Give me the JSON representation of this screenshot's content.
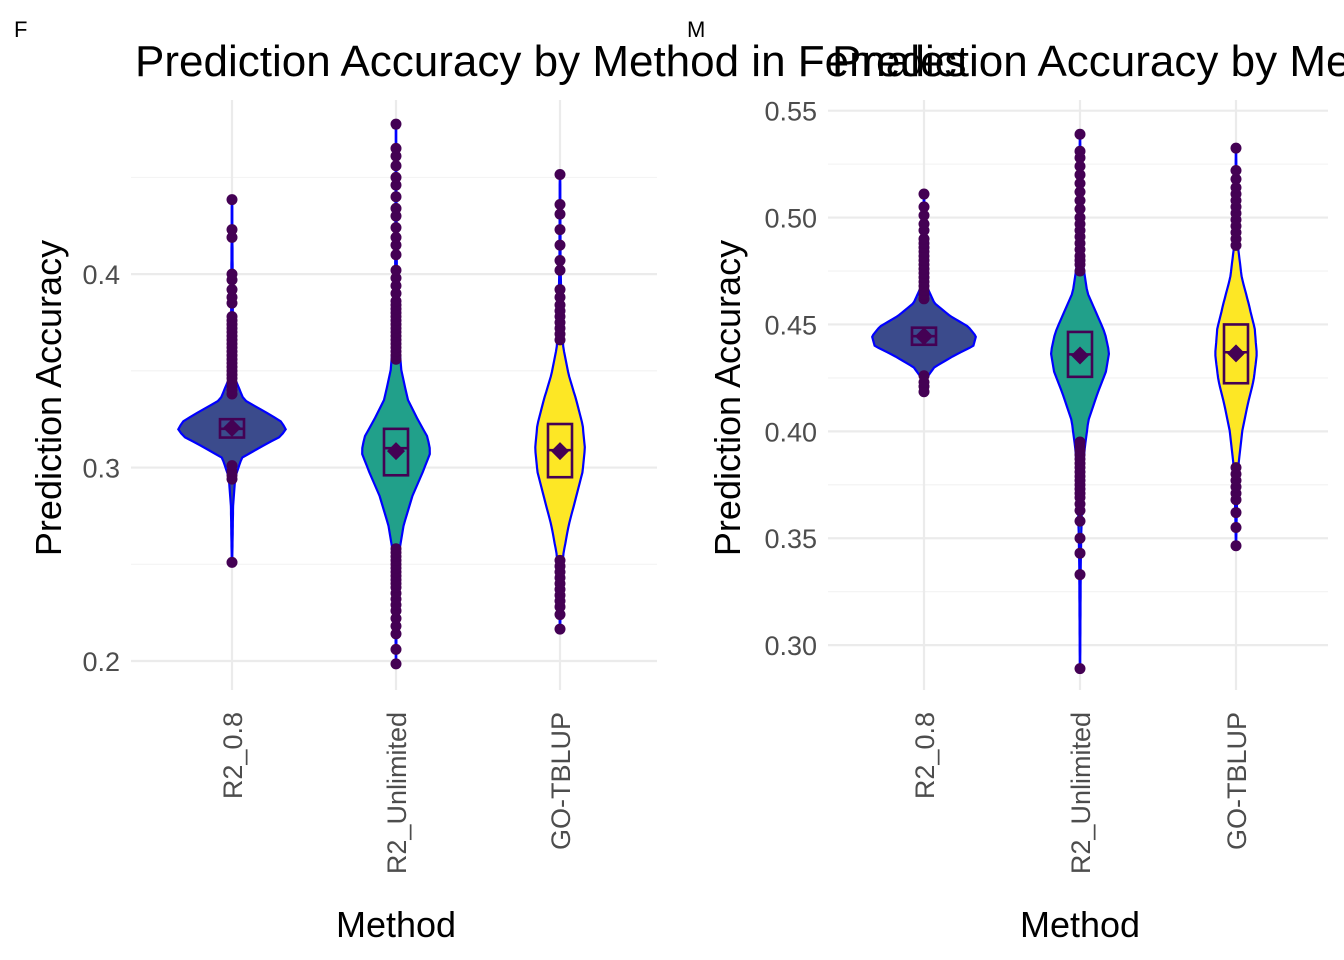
{
  "figure": {
    "background": "#ffffff",
    "violin_outline_color": "#0000ff",
    "point_color": "#440154",
    "box_color": "#440154",
    "mean_marker_color": "#440154"
  },
  "chart_data": [
    {
      "type": "violin",
      "panel_tag": "F",
      "title": "Prediction Accuracy by Method in Females",
      "xlabel": "Method",
      "ylabel": "Prediction Accuracy",
      "ylim": [
        0.185,
        0.49
      ],
      "yticks": [
        0.2,
        0.3,
        0.4
      ],
      "ytick_labels": [
        "0.2",
        "0.3",
        "0.4"
      ],
      "yminor": [
        0.25,
        0.35,
        0.45
      ],
      "categories": [
        "R2_0.8",
        "R2_Unlimited",
        "GO-TBLUP"
      ],
      "fill_colors": [
        "#3b4b8c",
        "#21a08a",
        "#fde725"
      ],
      "grid": true,
      "legend": "none",
      "series": [
        {
          "category": "R2_0.8",
          "median": 0.32,
          "q1": 0.3155,
          "q3": 0.325,
          "mean": 0.3205,
          "whisker_low": 0.251,
          "whisker_high": 0.4385,
          "density": [
            [
              0.251,
              0.004
            ],
            [
              0.28,
              0.02
            ],
            [
              0.295,
              0.06
            ],
            [
              0.305,
              0.18
            ],
            [
              0.312,
              0.62
            ],
            [
              0.316,
              0.9
            ],
            [
              0.32,
              1.0
            ],
            [
              0.324,
              0.9
            ],
            [
              0.329,
              0.6
            ],
            [
              0.335,
              0.22
            ],
            [
              0.345,
              0.07
            ],
            [
              0.36,
              0.03
            ],
            [
              0.38,
              0.015
            ],
            [
              0.4385,
              0.004
            ]
          ],
          "outliers": [
            0.251,
            0.294,
            0.296,
            0.298,
            0.301,
            0.338,
            0.34,
            0.342,
            0.344,
            0.346,
            0.348,
            0.35,
            0.352,
            0.354,
            0.356,
            0.358,
            0.36,
            0.362,
            0.364,
            0.366,
            0.368,
            0.37,
            0.372,
            0.374,
            0.376,
            0.378,
            0.385,
            0.388,
            0.392,
            0.397,
            0.4,
            0.419,
            0.423,
            0.4385
          ]
        },
        {
          "category": "R2_Unlimited",
          "median": 0.31,
          "q1": 0.296,
          "q3": 0.32,
          "mean": 0.3085,
          "whisker_low": 0.1985,
          "whisker_high": 0.4775,
          "density": [
            [
              0.1985,
              0.003
            ],
            [
              0.23,
              0.015
            ],
            [
              0.255,
              0.05
            ],
            [
              0.27,
              0.14
            ],
            [
              0.285,
              0.3
            ],
            [
              0.298,
              0.5
            ],
            [
              0.308,
              0.64
            ],
            [
              0.316,
              0.58
            ],
            [
              0.325,
              0.4
            ],
            [
              0.335,
              0.22
            ],
            [
              0.35,
              0.1
            ],
            [
              0.37,
              0.04
            ],
            [
              0.4,
              0.015
            ],
            [
              0.4775,
              0.003
            ]
          ],
          "outliers": [
            0.1985,
            0.206,
            0.214,
            0.218,
            0.222,
            0.226,
            0.229,
            0.232,
            0.235,
            0.238,
            0.24,
            0.242,
            0.244,
            0.246,
            0.248,
            0.25,
            0.252,
            0.254,
            0.256,
            0.258,
            0.356,
            0.358,
            0.36,
            0.362,
            0.364,
            0.366,
            0.368,
            0.37,
            0.372,
            0.374,
            0.376,
            0.378,
            0.38,
            0.382,
            0.384,
            0.386,
            0.39,
            0.394,
            0.398,
            0.402,
            0.41,
            0.415,
            0.419,
            0.424,
            0.43,
            0.434,
            0.44,
            0.446,
            0.45,
            0.456,
            0.461,
            0.465,
            0.4775
          ]
        },
        {
          "category": "GO-TBLUP",
          "median": 0.309,
          "q1": 0.295,
          "q3": 0.3225,
          "mean": 0.3085,
          "whisker_low": 0.2165,
          "whisker_high": 0.4515,
          "density": [
            [
              0.2165,
              0.004
            ],
            [
              0.24,
              0.02
            ],
            [
              0.255,
              0.06
            ],
            [
              0.27,
              0.16
            ],
            [
              0.285,
              0.3
            ],
            [
              0.298,
              0.42
            ],
            [
              0.31,
              0.46
            ],
            [
              0.322,
              0.42
            ],
            [
              0.335,
              0.3
            ],
            [
              0.348,
              0.16
            ],
            [
              0.362,
              0.06
            ],
            [
              0.38,
              0.025
            ],
            [
              0.41,
              0.01
            ],
            [
              0.4515,
              0.004
            ]
          ],
          "outliers": [
            0.2165,
            0.224,
            0.228,
            0.231,
            0.234,
            0.237,
            0.24,
            0.243,
            0.246,
            0.249,
            0.252,
            0.366,
            0.369,
            0.372,
            0.375,
            0.378,
            0.381,
            0.384,
            0.388,
            0.392,
            0.402,
            0.407,
            0.415,
            0.423,
            0.431,
            0.436,
            0.4515
          ]
        }
      ]
    },
    {
      "type": "violin",
      "panel_tag": "M",
      "title": "Prediction Accuracy by Method in Males",
      "xlabel": "Method",
      "ylabel": "Prediction Accuracy",
      "ylim": [
        0.279,
        0.555
      ],
      "yticks": [
        0.3,
        0.35,
        0.4,
        0.45,
        0.5,
        0.55
      ],
      "ytick_labels": [
        "0.30",
        "0.35",
        "0.40",
        "0.45",
        "0.50",
        "0.55"
      ],
      "yminor": [
        0.325,
        0.375,
        0.425,
        0.475,
        0.525
      ],
      "categories": [
        "R2_0.8",
        "R2_Unlimited",
        "GO-TBLUP"
      ],
      "fill_colors": [
        "#3b4b8c",
        "#21a08a",
        "#fde725"
      ],
      "grid": true,
      "legend": "none",
      "series": [
        {
          "category": "R2_0.8",
          "median": 0.4445,
          "q1": 0.4405,
          "q3": 0.4485,
          "mean": 0.4445,
          "whisker_low": 0.4185,
          "whisker_high": 0.511,
          "density": [
            [
              0.4185,
              0.004
            ],
            [
              0.425,
              0.05
            ],
            [
              0.43,
              0.2
            ],
            [
              0.435,
              0.55
            ],
            [
              0.44,
              0.95
            ],
            [
              0.4445,
              1.0
            ],
            [
              0.449,
              0.85
            ],
            [
              0.454,
              0.5
            ],
            [
              0.46,
              0.2
            ],
            [
              0.467,
              0.07
            ],
            [
              0.48,
              0.025
            ],
            [
              0.495,
              0.012
            ],
            [
              0.511,
              0.004
            ]
          ],
          "outliers": [
            0.4185,
            0.421,
            0.423,
            0.426,
            0.462,
            0.464,
            0.466,
            0.468,
            0.47,
            0.472,
            0.474,
            0.476,
            0.478,
            0.48,
            0.482,
            0.484,
            0.486,
            0.488,
            0.49,
            0.494,
            0.497,
            0.501,
            0.505,
            0.511
          ]
        },
        {
          "category": "R2_Unlimited",
          "median": 0.436,
          "q1": 0.4255,
          "q3": 0.4465,
          "mean": 0.4355,
          "whisker_low": 0.289,
          "whisker_high": 0.539,
          "density": [
            [
              0.289,
              0.003
            ],
            [
              0.34,
              0.015
            ],
            [
              0.37,
              0.04
            ],
            [
              0.39,
              0.08
            ],
            [
              0.405,
              0.16
            ],
            [
              0.418,
              0.34
            ],
            [
              0.428,
              0.5
            ],
            [
              0.437,
              0.56
            ],
            [
              0.446,
              0.48
            ],
            [
              0.455,
              0.32
            ],
            [
              0.465,
              0.14
            ],
            [
              0.478,
              0.06
            ],
            [
              0.5,
              0.02
            ],
            [
              0.539,
              0.003
            ]
          ],
          "outliers": [
            0.289,
            0.333,
            0.343,
            0.35,
            0.358,
            0.363,
            0.366,
            0.369,
            0.371,
            0.373,
            0.375,
            0.377,
            0.379,
            0.381,
            0.383,
            0.385,
            0.387,
            0.389,
            0.391,
            0.393,
            0.395,
            0.475,
            0.478,
            0.48,
            0.482,
            0.485,
            0.488,
            0.491,
            0.494,
            0.497,
            0.5,
            0.504,
            0.508,
            0.512,
            0.516,
            0.52,
            0.524,
            0.528,
            0.531,
            0.539
          ]
        },
        {
          "category": "GO-TBLUP",
          "median": 0.437,
          "q1": 0.4225,
          "q3": 0.45,
          "mean": 0.4365,
          "whisker_low": 0.3465,
          "whisker_high": 0.5325,
          "density": [
            [
              0.3465,
              0.003
            ],
            [
              0.37,
              0.02
            ],
            [
              0.385,
              0.05
            ],
            [
              0.4,
              0.12
            ],
            [
              0.412,
              0.22
            ],
            [
              0.424,
              0.34
            ],
            [
              0.436,
              0.4
            ],
            [
              0.448,
              0.36
            ],
            [
              0.46,
              0.24
            ],
            [
              0.472,
              0.11
            ],
            [
              0.485,
              0.045
            ],
            [
              0.505,
              0.015
            ],
            [
              0.5325,
              0.003
            ]
          ],
          "outliers": [
            0.3465,
            0.355,
            0.362,
            0.368,
            0.371,
            0.374,
            0.377,
            0.38,
            0.383,
            0.487,
            0.49,
            0.493,
            0.496,
            0.499,
            0.502,
            0.505,
            0.508,
            0.511,
            0.514,
            0.518,
            0.522,
            0.5325
          ]
        }
      ]
    }
  ]
}
